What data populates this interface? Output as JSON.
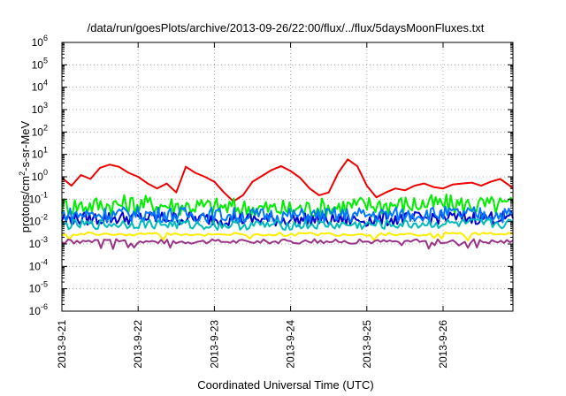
{
  "chart_data": {
    "type": "line",
    "title": "/data/run/goesPlots/archive/2013-09-26/22:00/flux/../flux/5daysMoonFluxes.txt",
    "xlabel": "Coordinated Universal Time (UTC)",
    "ylabel": "protons/cm2-s-sr-MeV",
    "ylabel_parts": {
      "pre": "protons/cm",
      "sup": "2",
      "post": "-s-sr-MeV"
    },
    "y_scale": "log",
    "ylim": [
      1e-06,
      1000000.0
    ],
    "y_ticks": [
      {
        "value": 1e-06,
        "base": "10",
        "exp": "-6"
      },
      {
        "value": 1e-05,
        "base": "10",
        "exp": "-5"
      },
      {
        "value": 0.0001,
        "base": "10",
        "exp": "-4"
      },
      {
        "value": 0.001,
        "base": "10",
        "exp": "-3"
      },
      {
        "value": 0.01,
        "base": "10",
        "exp": "-2"
      },
      {
        "value": 0.1,
        "base": "10",
        "exp": "-1"
      },
      {
        "value": 1,
        "base": "10",
        "exp": "0"
      },
      {
        "value": 10,
        "base": "10",
        "exp": "1"
      },
      {
        "value": 100,
        "base": "10",
        "exp": "2"
      },
      {
        "value": 1000,
        "base": "10",
        "exp": "3"
      },
      {
        "value": 10000.0,
        "base": "10",
        "exp": "4"
      },
      {
        "value": 100000.0,
        "base": "10",
        "exp": "5"
      },
      {
        "value": 1000000.0,
        "base": "10",
        "exp": "6"
      }
    ],
    "xlim": [
      "2013-09-21 00:00",
      "2013-09-26 22:00"
    ],
    "x_ticks": [
      "2013-9-21",
      "2013-9-22",
      "2013-9-23",
      "2013-9-24",
      "2013-9-25",
      "2013-9-26"
    ],
    "grid": true,
    "legend": "none",
    "series": [
      {
        "color": "#ee0000",
        "x": [
          "2013-09-21 00:00",
          "2013-09-21 03:00",
          "2013-09-21 06:00",
          "2013-09-21 09:00",
          "2013-09-21 12:00",
          "2013-09-21 15:00",
          "2013-09-21 18:00",
          "2013-09-21 21:00",
          "2013-09-22 00:00",
          "2013-09-22 03:00",
          "2013-09-22 06:00",
          "2013-09-22 09:00",
          "2013-09-22 12:00",
          "2013-09-22 15:00",
          "2013-09-22 18:00",
          "2013-09-22 21:00",
          "2013-09-23 00:00",
          "2013-09-23 03:00",
          "2013-09-23 06:00",
          "2013-09-23 09:00",
          "2013-09-23 12:00",
          "2013-09-23 15:00",
          "2013-09-23 18:00",
          "2013-09-23 21:00",
          "2013-09-24 00:00",
          "2013-09-24 03:00",
          "2013-09-24 06:00",
          "2013-09-24 09:00",
          "2013-09-24 12:00",
          "2013-09-24 15:00",
          "2013-09-24 18:00",
          "2013-09-24 21:00",
          "2013-09-25 00:00",
          "2013-09-25 03:00",
          "2013-09-25 06:00",
          "2013-09-25 09:00",
          "2013-09-25 12:00",
          "2013-09-25 15:00",
          "2013-09-25 18:00",
          "2013-09-25 21:00",
          "2013-09-26 00:00",
          "2013-09-26 03:00",
          "2013-09-26 06:00",
          "2013-09-26 09:00",
          "2013-09-26 12:00",
          "2013-09-26 15:00",
          "2013-09-26 18:00",
          "2013-09-26 21:00",
          "2013-09-26 22:00"
        ],
        "y": [
          0.9,
          0.4,
          1.2,
          0.8,
          2.5,
          3.5,
          2.8,
          1.5,
          1.0,
          0.5,
          0.3,
          0.5,
          0.2,
          2.8,
          1.5,
          1.0,
          0.6,
          0.2,
          0.08,
          0.15,
          0.6,
          1.1,
          2.0,
          3.0,
          1.8,
          0.9,
          0.3,
          0.15,
          0.2,
          1.5,
          6.0,
          3.0,
          0.4,
          0.12,
          0.2,
          0.3,
          0.25,
          0.4,
          0.5,
          0.35,
          0.3,
          0.45,
          0.5,
          0.55,
          0.4,
          0.6,
          0.8,
          0.4,
          0.3
        ]
      },
      {
        "color": "#00ee00",
        "x": [
          "2013-09-21 00:00",
          "2013-09-22 00:00",
          "2013-09-23 00:00",
          "2013-09-24 00:00",
          "2013-09-25 00:00",
          "2013-09-26 00:00",
          "2013-09-26 22:00"
        ],
        "y": [
          0.05,
          0.06,
          0.045,
          0.035,
          0.055,
          0.06,
          0.05
        ]
      },
      {
        "color": "#0000cc",
        "x": [
          "2013-09-21 00:00",
          "2013-09-22 00:00",
          "2013-09-23 00:00",
          "2013-09-24 00:00",
          "2013-09-25 00:00",
          "2013-09-26 00:00",
          "2013-09-26 22:00"
        ],
        "y": [
          0.013,
          0.015,
          0.013,
          0.012,
          0.012,
          0.015,
          0.015
        ]
      },
      {
        "color": "#0077ff",
        "x": [
          "2013-09-21 00:00",
          "2013-09-22 00:00",
          "2013-09-23 00:00",
          "2013-09-24 00:00",
          "2013-09-25 00:00",
          "2013-09-26 00:00",
          "2013-09-26 22:00"
        ],
        "y": [
          0.02,
          0.022,
          0.02,
          0.018,
          0.02,
          0.022,
          0.02
        ]
      },
      {
        "color": "#00bbbb",
        "x": [
          "2013-09-21 00:00",
          "2013-09-22 00:00",
          "2013-09-23 00:00",
          "2013-09-24 00:00",
          "2013-09-25 00:00",
          "2013-09-26 00:00",
          "2013-09-26 22:00"
        ],
        "y": [
          0.007,
          0.008,
          0.007,
          0.007,
          0.007,
          0.008,
          0.008
        ]
      },
      {
        "color": "#ffee00",
        "x": [
          "2013-09-21 00:00",
          "2013-09-22 00:00",
          "2013-09-23 00:00",
          "2013-09-24 00:00",
          "2013-09-25 00:00",
          "2013-09-26 00:00",
          "2013-09-26 22:00"
        ],
        "y": [
          0.0028,
          0.0028,
          0.0027,
          0.0027,
          0.0027,
          0.0028,
          0.0028
        ]
      },
      {
        "color": "#993388",
        "x": [
          "2013-09-21 00:00",
          "2013-09-22 00:00",
          "2013-09-23 00:00",
          "2013-09-24 00:00",
          "2013-09-25 00:00",
          "2013-09-26 00:00",
          "2013-09-26 22:00"
        ],
        "y": [
          0.0013,
          0.0013,
          0.0013,
          0.0013,
          0.0013,
          0.0013,
          0.0013
        ]
      }
    ]
  }
}
